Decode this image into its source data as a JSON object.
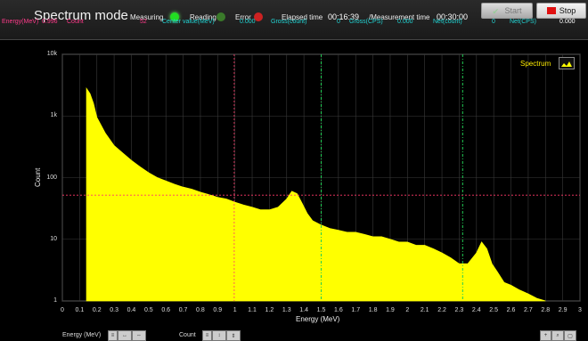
{
  "header": {
    "title": "Spectrum mode",
    "indicators": [
      {
        "label": "Measuring",
        "color": "#22dd22"
      },
      {
        "label": "Reading",
        "color": "#3a7a2a"
      },
      {
        "label": "Error",
        "color": "#cc2222"
      }
    ],
    "elapsed_label": "Elapsed time",
    "elapsed_value": "00:16:39",
    "measurement_label": "/Measurement time",
    "measurement_value": "00:30:00",
    "start_label": "Start",
    "stop_label": "Stop"
  },
  "readout": {
    "energy_label": "Energy(MeV)",
    "energy_value": "0.996",
    "count_label": "Count",
    "count_value": "52",
    "center_label": "Center value(MeV)",
    "center_value": "0.000",
    "gross_count_label": "Gross(count)",
    "gross_count_value": "0",
    "gross_cps_label": "Gross(CPS)",
    "gross_cps_value": "0.000",
    "net_count_label": "Net(count)",
    "net_count_value": "0",
    "net_cps_label": "Net(CPS)",
    "net_cps_value": "0.000"
  },
  "footer": {
    "energy_label": "Energy (MeV)",
    "count_label": "Count"
  },
  "chart_data": {
    "type": "area",
    "xlabel": "Energy (MeV)",
    "ylabel": "Count",
    "yscale": "log",
    "xlim": [
      0,
      3
    ],
    "ylim": [
      1,
      10000
    ],
    "x_ticks": [
      "0",
      "0.1",
      "0.2",
      "0.3",
      "0.4",
      "0.5",
      "0.6",
      "0.7",
      "0.8",
      "0.9",
      "1",
      "1.1",
      "1.2",
      "1.3",
      "1.4",
      "1.5",
      "1.6",
      "1.7",
      "1.8",
      "1.9",
      "2",
      "2.1",
      "2.2",
      "2.3",
      "2.4",
      "2.5",
      "2.6",
      "2.7",
      "2.8",
      "2.9",
      "3"
    ],
    "y_ticks": [
      "10k",
      "1k",
      "100",
      "10",
      "1"
    ],
    "legend": "Spectrum",
    "color": "#ffff00",
    "cursor": {
      "energy": 0.996,
      "count": 52
    },
    "markers": [
      1.5,
      2.32
    ],
    "series": [
      {
        "name": "Spectrum",
        "x": [
          0.14,
          0.16,
          0.18,
          0.2,
          0.25,
          0.3,
          0.35,
          0.4,
          0.45,
          0.5,
          0.55,
          0.6,
          0.65,
          0.7,
          0.75,
          0.8,
          0.85,
          0.9,
          0.95,
          1.0,
          1.05,
          1.1,
          1.15,
          1.2,
          1.25,
          1.3,
          1.33,
          1.36,
          1.39,
          1.42,
          1.45,
          1.5,
          1.55,
          1.6,
          1.65,
          1.7,
          1.75,
          1.8,
          1.85,
          1.9,
          1.95,
          2.0,
          2.05,
          2.1,
          2.15,
          2.2,
          2.25,
          2.3,
          2.35,
          2.4,
          2.43,
          2.46,
          2.49,
          2.52,
          2.56,
          2.6,
          2.65,
          2.7,
          2.75,
          2.8
        ],
        "y": [
          2800,
          2300,
          1600,
          950,
          520,
          330,
          250,
          190,
          150,
          120,
          100,
          88,
          78,
          70,
          65,
          58,
          53,
          48,
          45,
          40,
          36,
          33,
          30,
          30,
          33,
          45,
          60,
          55,
          38,
          26,
          20,
          17,
          15,
          14,
          13,
          13,
          12,
          11,
          11,
          10,
          9,
          9,
          8,
          8,
          7,
          6,
          5,
          4,
          4,
          6,
          9,
          7,
          4,
          3,
          2,
          1.8,
          1.5,
          1.3,
          1.1,
          1
        ]
      }
    ]
  }
}
